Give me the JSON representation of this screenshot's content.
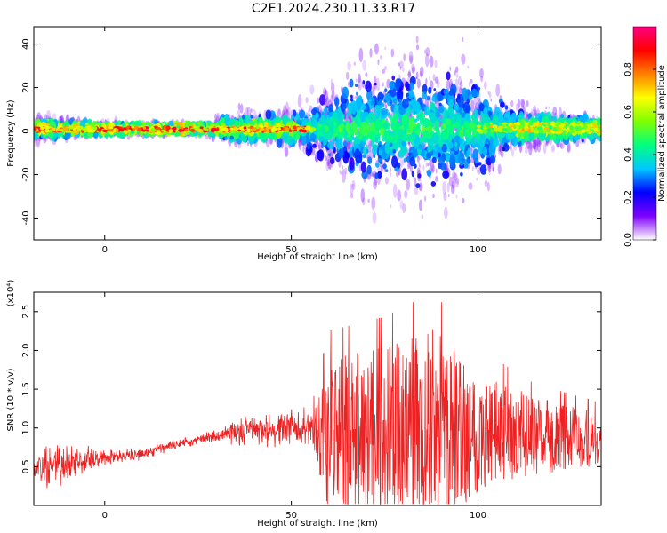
{
  "title": "C2E1.2024.230.11.33.R17",
  "chart_data": [
    {
      "type": "heatmap",
      "xlabel": "Height of straight line (km)",
      "ylabel": "Frequency (Hz)",
      "xlim": [
        -19,
        133
      ],
      "ylim": [
        -50,
        48
      ],
      "xticks": [
        0,
        50,
        100
      ],
      "yticks": [
        -40,
        -20,
        0,
        20,
        40
      ],
      "colorbar": {
        "label": "Normalized spectral amplitude",
        "range": [
          0,
          1
        ],
        "ticks": [
          "0.0",
          "0.2",
          "0.4",
          "0.6",
          "0.8"
        ],
        "colors": [
          "#ffffff",
          "#7f00ff",
          "#0000ff",
          "#00c8ff",
          "#00ff80",
          "#80ff00",
          "#ffff00",
          "#ff8000",
          "#ff0000",
          "#ff0080"
        ]
      },
      "spread_profile": [
        {
          "x": -19,
          "spread": 6
        },
        {
          "x": 0,
          "spread": 3
        },
        {
          "x": 25,
          "spread": 2
        },
        {
          "x": 35,
          "spread": 8
        },
        {
          "x": 50,
          "spread": 10
        },
        {
          "x": 57,
          "spread": 18
        },
        {
          "x": 70,
          "spread": 35
        },
        {
          "x": 85,
          "spread": 40
        },
        {
          "x": 100,
          "spread": 30
        },
        {
          "x": 110,
          "spread": 12
        },
        {
          "x": 133,
          "spread": 6
        }
      ]
    },
    {
      "type": "line",
      "xlabel": "Height of straight line (km)",
      "ylabel": "SNR (10 * v/v)",
      "yscale_note": "(x10⁴)",
      "xlim": [
        -19,
        133
      ],
      "ylim": [
        0,
        2.75
      ],
      "xticks": [
        0,
        50,
        100
      ],
      "yticks": [
        "0.5",
        "1.0",
        "1.5",
        "2.0",
        "2.5"
      ],
      "series": [
        {
          "color": "#ee2222",
          "envelope": [
            {
              "x": -19,
              "mean": 0.45,
              "amp": 0.3
            },
            {
              "x": -10,
              "mean": 0.55,
              "amp": 0.3
            },
            {
              "x": 0,
              "mean": 0.62,
              "amp": 0.12
            },
            {
              "x": 10,
              "mean": 0.66,
              "amp": 0.08
            },
            {
              "x": 20,
              "mean": 0.8,
              "amp": 0.08
            },
            {
              "x": 30,
              "mean": 0.9,
              "amp": 0.08
            },
            {
              "x": 35,
              "mean": 0.95,
              "amp": 0.2
            },
            {
              "x": 45,
              "mean": 0.98,
              "amp": 0.25
            },
            {
              "x": 56,
              "mean": 1.0,
              "amp": 0.3
            },
            {
              "x": 60,
              "mean": 0.9,
              "amp": 1.0
            },
            {
              "x": 75,
              "mean": 0.95,
              "amp": 1.1
            },
            {
              "x": 88,
              "mean": 1.0,
              "amp": 1.3
            },
            {
              "x": 100,
              "mean": 0.95,
              "amp": 0.8
            },
            {
              "x": 115,
              "mean": 0.9,
              "amp": 0.5
            },
            {
              "x": 133,
              "mean": 0.85,
              "amp": 0.35
            }
          ]
        }
      ]
    }
  ]
}
